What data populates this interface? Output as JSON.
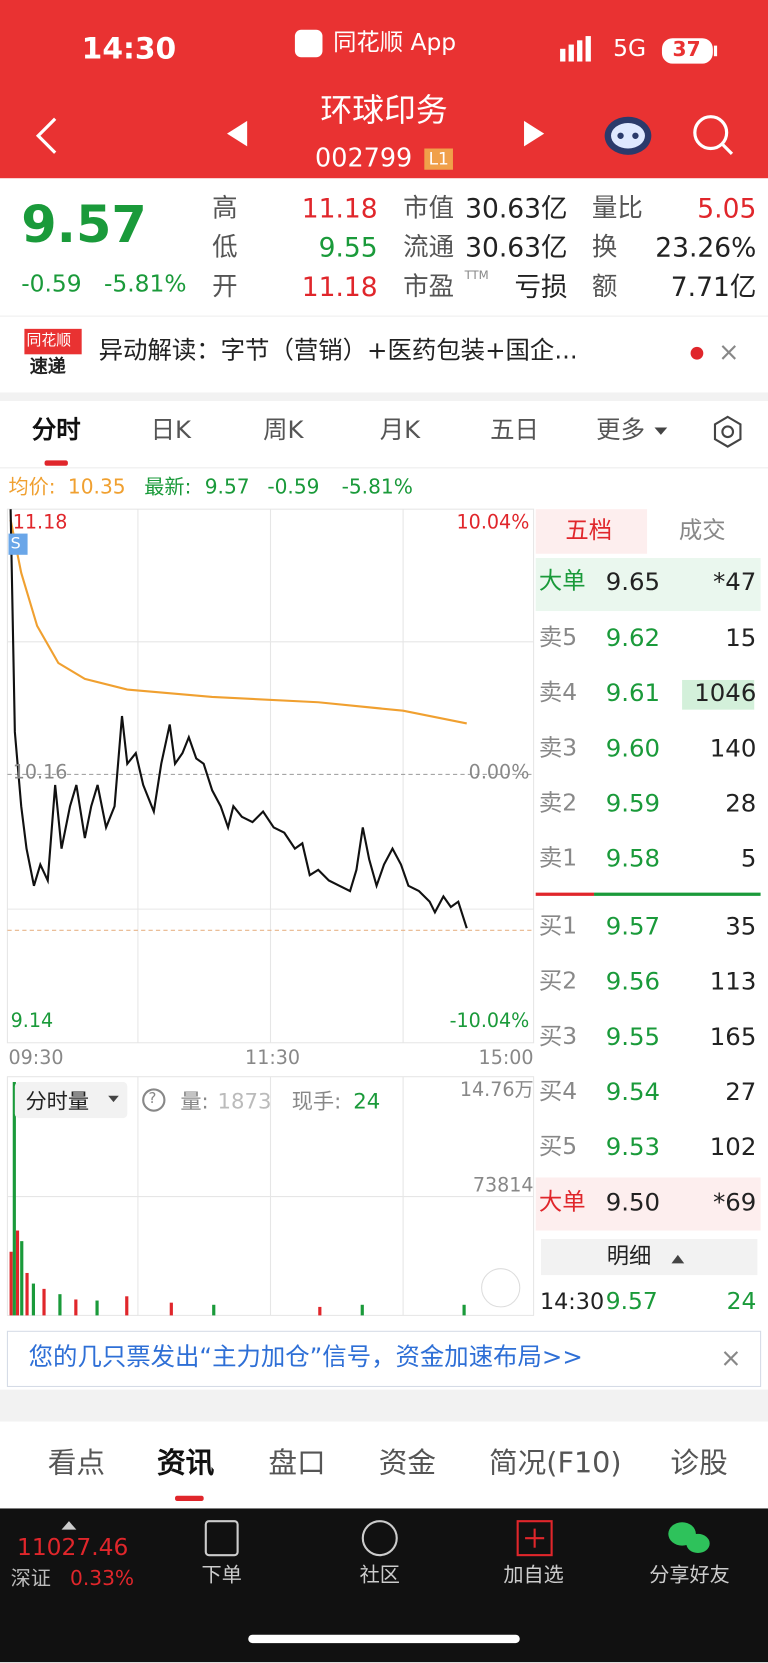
{
  "status_bar": {
    "time": "14:30",
    "app": "同花顺 App",
    "network": "5G",
    "battery": "37"
  },
  "header": {
    "title": "环球印务",
    "code": "002799",
    "level": "L1"
  },
  "quote": {
    "price": "9.57",
    "change": "-0.59",
    "change_pct": "-5.81%",
    "pe_sup": "TTM",
    "stats": [
      [
        "高",
        "11.18"
      ],
      [
        "低",
        "9.55"
      ],
      [
        "开",
        "11.18"
      ],
      [
        "市值",
        "30.63亿"
      ],
      [
        "流通",
        "30.63亿"
      ],
      [
        "市盈",
        "亏损"
      ],
      [
        "量比",
        "5.05"
      ],
      [
        "换",
        "23.26%"
      ],
      [
        "额",
        "7.71亿"
      ]
    ]
  },
  "news": {
    "logo_top": "同花顺",
    "logo_bottom": "速递",
    "text": "异动解读：字节（营销）+医药包装+国企..."
  },
  "tabs": [
    "分时",
    "日K",
    "周K",
    "月K",
    "五日",
    "更多"
  ],
  "chart_info": {
    "avg_label": "均价:",
    "avg": "10.35",
    "latest_label": "最新:",
    "latest": "9.57",
    "change": "-0.59",
    "change_pct": "-5.81%"
  },
  "chart_axis": {
    "high": "11.18",
    "mid": "10.16",
    "low": "9.14",
    "high_pct": "10.04%",
    "mid_pct": "0.00%",
    "low_pct": "-10.04%",
    "times": [
      "09:30",
      "11:30",
      "15:00"
    ],
    "marker": "S"
  },
  "order_book": {
    "tabs": [
      "五档",
      "成交"
    ],
    "big_sell": [
      "大单",
      "9.65",
      "*47"
    ],
    "asks": [
      [
        "卖5",
        "9.62",
        "15"
      ],
      [
        "卖4",
        "9.61",
        "1046"
      ],
      [
        "卖3",
        "9.60",
        "140"
      ],
      [
        "卖2",
        "9.59",
        "28"
      ],
      [
        "卖1",
        "9.58",
        "5"
      ]
    ],
    "bids": [
      [
        "买1",
        "9.57",
        "35"
      ],
      [
        "买2",
        "9.56",
        "113"
      ],
      [
        "买3",
        "9.55",
        "165"
      ],
      [
        "买4",
        "9.54",
        "27"
      ],
      [
        "买5",
        "9.53",
        "102"
      ]
    ],
    "big_buy": [
      "大单",
      "9.50",
      "*69"
    ],
    "detail_label": "明细",
    "last_trade": [
      "14:30",
      "9.57",
      "24"
    ]
  },
  "volume": {
    "selector": "分时量",
    "vol_label": "量:",
    "vol": "1873",
    "hand_label": "现手:",
    "hand": "24",
    "max": "14.76万",
    "mid": "73814"
  },
  "banner": {
    "text": "您的几只票发出“主力加仓”信号，资金加速布局>>"
  },
  "bottom_tabs": [
    "看点",
    "资讯",
    "盘口",
    "资金",
    "简况(F10)",
    "诊股"
  ],
  "footer": {
    "index": "11027.46",
    "market": "深证",
    "index_pct": "0.33%",
    "actions": [
      "下单",
      "社区",
      "加自选",
      "分享好友"
    ]
  }
}
